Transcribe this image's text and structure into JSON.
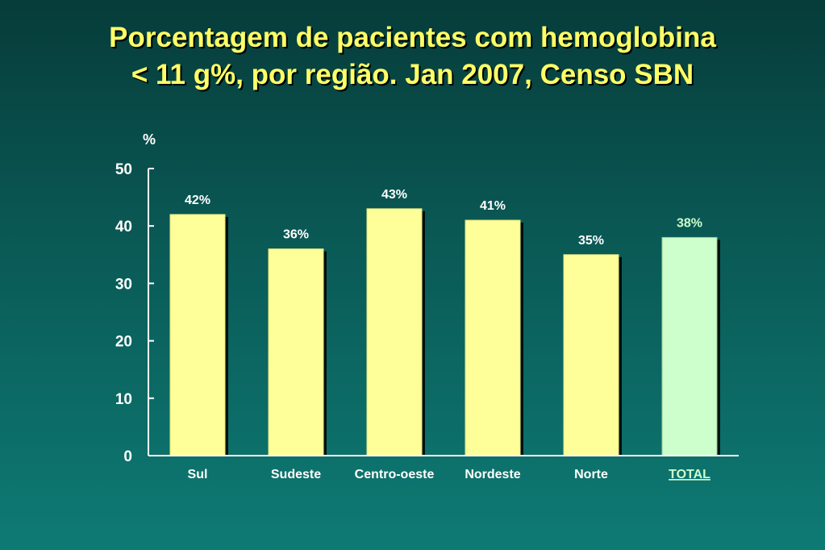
{
  "title_lines": [
    "Porcentagem de pacientes com hemoglobina",
    "< 11 g%, por região. Jan 2007, Censo SBN"
  ],
  "chart_data": {
    "type": "bar",
    "title": "Porcentagem de pacientes com hemoglobina < 11 g%, por região. Jan 2007, Censo SBN",
    "ylabel": "%",
    "ylim": [
      0,
      50
    ],
    "yticks": [
      0,
      10,
      20,
      30,
      40,
      50
    ],
    "grid": false,
    "categories": [
      "Sul",
      "Sudeste",
      "Centro-oeste",
      "Nordeste",
      "Norte",
      "TOTAL"
    ],
    "values": [
      42,
      36,
      43,
      41,
      35,
      38
    ],
    "data_labels": [
      "42%",
      "36%",
      "43%",
      "41%",
      "35%",
      "38%"
    ],
    "colors": {
      "bar": "#ffff99",
      "total_bar": "#ccffcc",
      "total_label": "#ccffcc",
      "title": "#ffff66",
      "text": "#ffffff"
    }
  }
}
